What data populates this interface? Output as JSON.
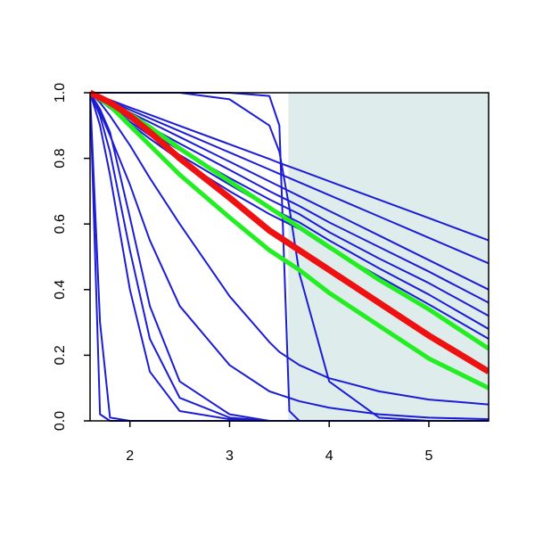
{
  "chart_data": {
    "type": "line",
    "x": [
      1.6,
      1.7,
      1.8,
      2.0,
      2.2,
      2.5,
      3.0,
      3.4,
      3.5,
      3.6,
      3.7,
      4.0,
      4.5,
      5.0,
      5.6
    ],
    "xlim": [
      1.6,
      5.6
    ],
    "xticks": [
      2,
      3,
      4,
      5
    ],
    "ylim": [
      0,
      1
    ],
    "yticks": [
      {
        "value": 0,
        "label": "0.0"
      },
      0.2,
      0.4,
      0.6,
      0.8,
      {
        "value": 1,
        "label": "1.0"
      }
    ],
    "shaded_region": {
      "xlim": [
        3.59,
        5.6
      ],
      "color": "#deecec"
    },
    "series": [
      {
        "color": "#1c1cd6",
        "width": 2,
        "values": [
          1,
          0.989,
          0.978,
          0.955,
          0.933,
          0.899,
          0.843,
          0.798,
          0.786,
          0.775,
          0.764,
          0.73,
          0.674,
          0.618,
          0.55
        ]
      },
      {
        "color": "#1c1cd6",
        "width": 2,
        "values": [
          1,
          0.987,
          0.974,
          0.948,
          0.922,
          0.883,
          0.818,
          0.766,
          0.753,
          0.74,
          0.727,
          0.688,
          0.623,
          0.558,
          0.48
        ]
      },
      {
        "color": "#1c1cd6",
        "width": 2,
        "values": [
          1,
          0.985,
          0.97,
          0.94,
          0.91,
          0.865,
          0.79,
          0.73,
          0.715,
          0.7,
          0.685,
          0.64,
          0.565,
          0.49,
          0.4
        ]
      },
      {
        "color": "#1c1cd6",
        "width": 2,
        "values": [
          1,
          0.982,
          0.965,
          0.93,
          0.895,
          0.845,
          0.765,
          0.7,
          0.685,
          0.67,
          0.655,
          0.605,
          0.53,
          0.455,
          0.36
        ]
      },
      {
        "color": "#1c1cd6",
        "width": 2,
        "values": [
          1,
          0.98,
          0.96,
          0.92,
          0.88,
          0.825,
          0.74,
          0.675,
          0.66,
          0.645,
          0.63,
          0.575,
          0.495,
          0.42,
          0.32
        ]
      },
      {
        "color": "#1c1cd6",
        "width": 2,
        "values": [
          1,
          0.978,
          0.956,
          0.912,
          0.87,
          0.81,
          0.72,
          0.65,
          0.635,
          0.62,
          0.605,
          0.55,
          0.465,
          0.385,
          0.28
        ]
      },
      {
        "color": "#1c1cd6",
        "width": 2,
        "values": [
          1,
          0.977,
          0.953,
          0.905,
          0.86,
          0.795,
          0.7,
          0.63,
          0.615,
          0.6,
          0.585,
          0.525,
          0.44,
          0.355,
          0.25
        ]
      },
      {
        "color": "#1c1cd6",
        "width": 2,
        "values": [
          1,
          0.02,
          0,
          0,
          0,
          0,
          0,
          0,
          0,
          0,
          0,
          0,
          0,
          0,
          0
        ]
      },
      {
        "color": "#1c1cd6",
        "width": 2,
        "values": [
          1,
          0.3,
          0.01,
          0,
          0,
          0,
          0,
          0,
          0,
          0,
          0,
          0,
          0,
          0,
          0
        ]
      },
      {
        "color": "#1c1cd6",
        "width": 2,
        "values": [
          1,
          0.9,
          0.75,
          0.4,
          0.15,
          0.03,
          0.005,
          0,
          0,
          0,
          0,
          0,
          0,
          0,
          0
        ]
      },
      {
        "color": "#1c1cd6",
        "width": 2,
        "values": [
          1,
          0.93,
          0.82,
          0.52,
          0.25,
          0.07,
          0.01,
          0,
          0,
          0,
          0,
          0,
          0,
          0,
          0
        ]
      },
      {
        "color": "#1c1cd6",
        "width": 2,
        "values": [
          1,
          0.95,
          0.88,
          0.62,
          0.35,
          0.12,
          0.02,
          0,
          0,
          0,
          0,
          0,
          0,
          0,
          0
        ]
      },
      {
        "color": "#1c1cd6",
        "width": 2,
        "values": [
          1,
          0.94,
          0.87,
          0.72,
          0.55,
          0.35,
          0.17,
          0.09,
          0.08,
          0.07,
          0.06,
          0.04,
          0.02,
          0.01,
          0.005
        ]
      },
      {
        "color": "#1c1cd6",
        "width": 2,
        "values": [
          1,
          0.97,
          0.93,
          0.84,
          0.74,
          0.6,
          0.38,
          0.24,
          0.21,
          0.19,
          0.17,
          0.13,
          0.09,
          0.065,
          0.05
        ]
      },
      {
        "color": "#1c1cd6",
        "width": 2,
        "values": [
          1,
          1,
          1,
          1,
          1,
          1,
          1,
          0.99,
          0.9,
          0.03,
          0,
          0,
          0,
          0,
          0
        ]
      },
      {
        "color": "#1c1cd6",
        "width": 2,
        "values": [
          1,
          1,
          1,
          1,
          1,
          1,
          0.98,
          0.9,
          0.82,
          0.65,
          0.45,
          0.12,
          0.01,
          0,
          0
        ]
      },
      {
        "color": "#22ee22",
        "width": 5,
        "values": [
          1,
          0.985,
          0.97,
          0.935,
          0.895,
          0.83,
          0.73,
          0.65,
          0.63,
          0.61,
          0.59,
          0.53,
          0.43,
          0.34,
          0.22
        ]
      },
      {
        "color": "#22ee22",
        "width": 5,
        "values": [
          1,
          0.98,
          0.96,
          0.9,
          0.84,
          0.75,
          0.62,
          0.52,
          0.5,
          0.48,
          0.46,
          0.39,
          0.29,
          0.19,
          0.1
        ]
      },
      {
        "color": "#ee1111",
        "width": 7,
        "values": [
          1,
          0.985,
          0.97,
          0.93,
          0.88,
          0.8,
          0.68,
          0.58,
          0.56,
          0.54,
          0.52,
          0.46,
          0.36,
          0.26,
          0.15
        ]
      }
    ]
  }
}
